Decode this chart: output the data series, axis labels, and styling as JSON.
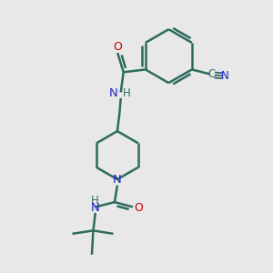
{
  "bg_color": "#e8e8e8",
  "bond_color": "#2d6b5e",
  "N_color": "#2222cc",
  "O_color": "#cc0000",
  "linewidth": 1.8,
  "figsize": [
    3.0,
    3.0
  ],
  "dpi": 100,
  "xlim": [
    0,
    10
  ],
  "ylim": [
    0,
    10
  ]
}
